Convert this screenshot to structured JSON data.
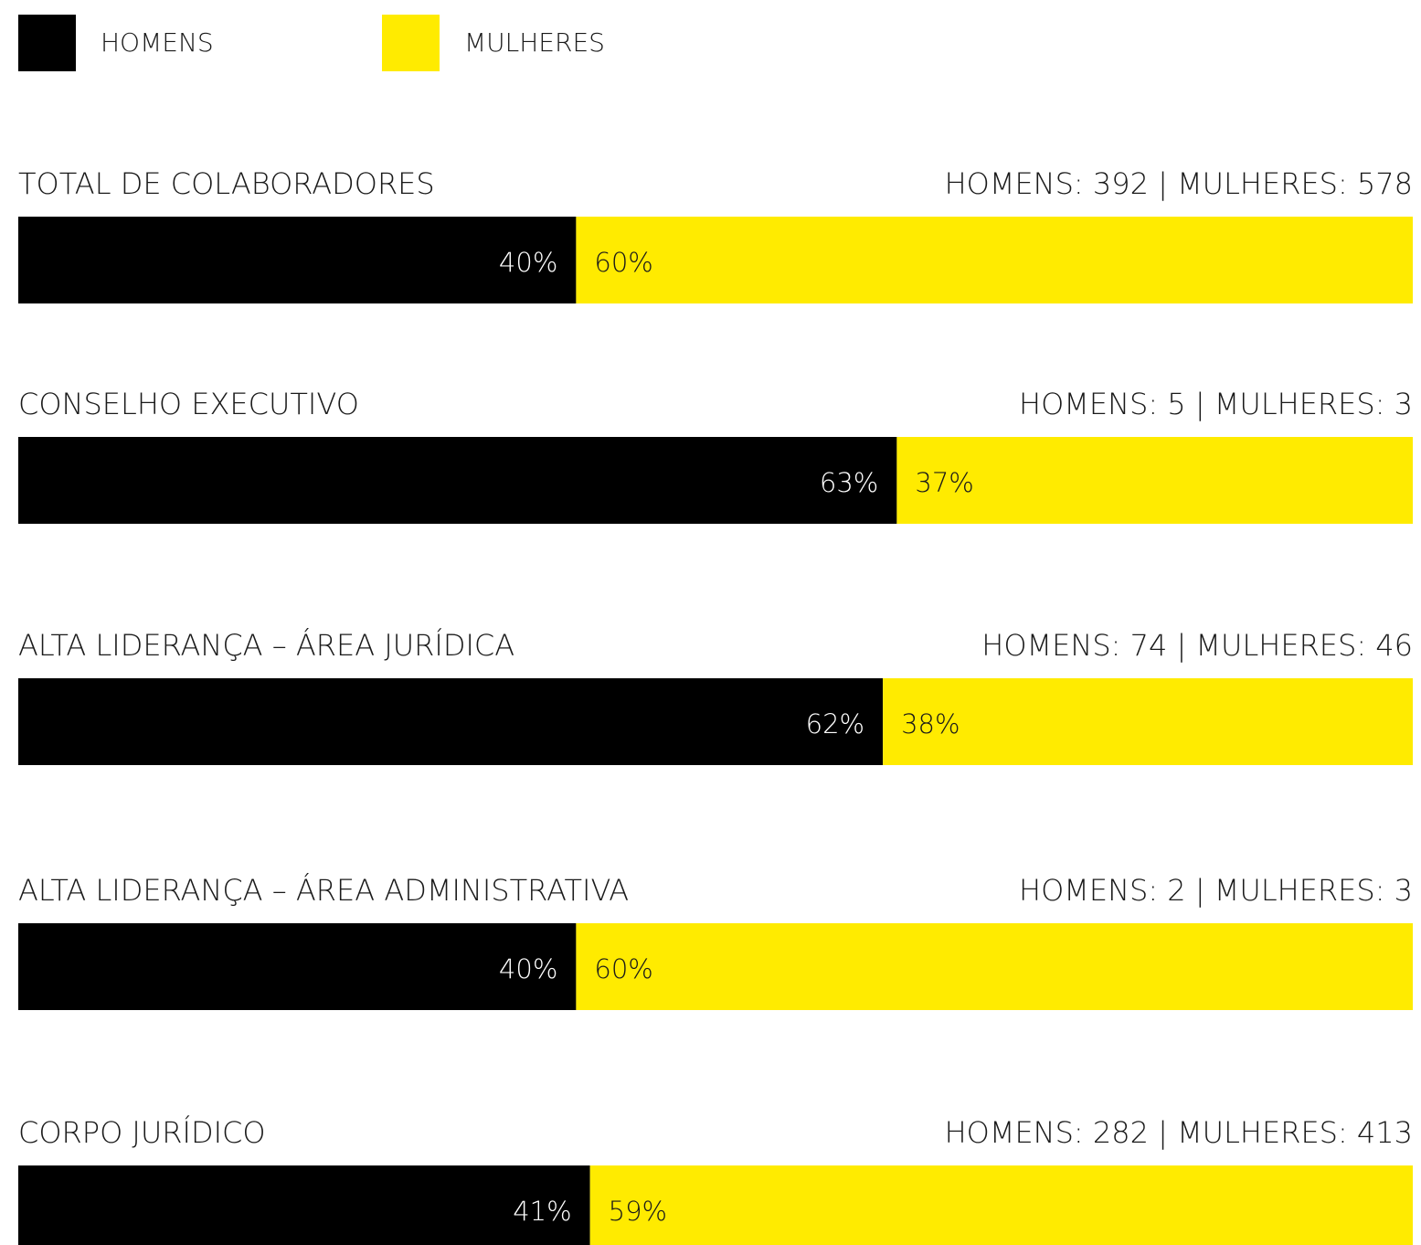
{
  "chart_data": {
    "type": "bar",
    "orientation": "horizontal",
    "stacked": true,
    "categories": [
      "TOTAL DE COLABORADORES",
      "CONSELHO EXECUTIVO",
      "ALTA LIDERANÇA – ÁREA JURÍDICA",
      "ALTA LIDERANÇA – ÁREA ADMINISTRATIVA",
      "CORPO JURÍDICO"
    ],
    "annotations": [
      "HOMENS: 392 | MULHERES: 578",
      "HOMENS: 5 | MULHERES: 3",
      "HOMENS: 74 | MULHERES: 46",
      "HOMENS: 2 | MULHERES: 3",
      "HOMENS: 282 | MULHERES: 413"
    ],
    "series": [
      {
        "name": "HOMENS",
        "color": "#000000",
        "label_color": "#ffffff",
        "values": [
          40,
          63,
          62,
          40,
          41
        ],
        "value_labels": [
          "40%",
          "63%",
          "62%",
          "40%",
          "41%"
        ]
      },
      {
        "name": "MULHERES",
        "color": "#ffeb00",
        "label_color": "#1a1a1a",
        "values": [
          60,
          37,
          38,
          60,
          59
        ],
        "value_labels": [
          "60%",
          "37%",
          "38%",
          "60%",
          "59%"
        ]
      }
    ],
    "xlim": [
      0,
      100
    ]
  }
}
